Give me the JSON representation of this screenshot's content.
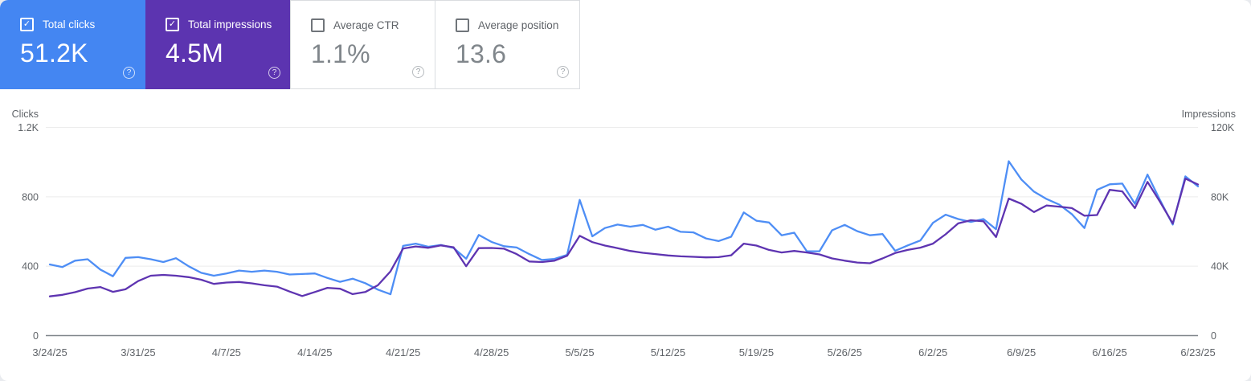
{
  "cards": [
    {
      "label": "Total clicks",
      "value": "51.2K",
      "checked": true,
      "color": "#4486f2"
    },
    {
      "label": "Total impressions",
      "value": "4.5M",
      "checked": true,
      "color": "#5c34b0"
    },
    {
      "label": "Average CTR",
      "value": "1.1%",
      "checked": false,
      "color": "#ffffff"
    },
    {
      "label": "Average position",
      "value": "13.6",
      "checked": false,
      "color": "#ffffff"
    }
  ],
  "help_icon_glyph": "?",
  "checkbox_check_glyph": "✓",
  "chart_data": {
    "type": "line",
    "start_date": "3/24/25",
    "end_date": "6/23/25",
    "x_tick_labels": [
      "3/24/25",
      "3/31/25",
      "4/7/25",
      "4/14/25",
      "4/21/25",
      "4/28/25",
      "5/5/25",
      "5/12/25",
      "5/19/25",
      "5/26/25",
      "6/2/25",
      "6/9/25",
      "6/16/25",
      "6/23/25"
    ],
    "left_axis": {
      "title": "Clicks",
      "ticks": [
        "0",
        "400",
        "800",
        "1.2K"
      ],
      "min": 0,
      "max": 1200
    },
    "right_axis": {
      "title": "Impressions",
      "ticks": [
        "0",
        "40K",
        "80K",
        "120K"
      ],
      "min": 0,
      "max": 120000
    },
    "grid": "horizontal-only",
    "legend_position": "none",
    "series": [
      {
        "name": "Clicks",
        "axis": "left",
        "color": "#4e8ef5",
        "values": [
          410,
          395,
          432,
          440,
          381,
          342,
          448,
          452,
          440,
          424,
          446,
          400,
          362,
          345,
          358,
          375,
          368,
          375,
          368,
          352,
          355,
          358,
          332,
          310,
          328,
          302,
          265,
          238,
          517,
          530,
          512,
          522,
          505,
          443,
          580,
          540,
          515,
          508,
          470,
          436,
          442,
          465,
          782,
          572,
          620,
          640,
          628,
          638,
          610,
          628,
          598,
          595,
          560,
          545,
          570,
          710,
          662,
          652,
          578,
          593,
          486,
          486,
          607,
          638,
          602,
          578,
          585,
          489,
          520,
          548,
          650,
          697,
          672,
          655,
          672,
          613,
          1005,
          900,
          830,
          787,
          755,
          700,
          620,
          840,
          872,
          876,
          760,
          928,
          780,
          640,
          918,
          860
        ]
      },
      {
        "name": "Impressions",
        "axis": "right",
        "color": "#5e34b1",
        "values": [
          22600,
          23500,
          25000,
          27100,
          28000,
          25200,
          26700,
          31400,
          34500,
          35000,
          34500,
          33700,
          32200,
          29800,
          30600,
          30900,
          30100,
          29000,
          28200,
          25400,
          22800,
          25100,
          27500,
          27000,
          23900,
          25100,
          29000,
          37000,
          50200,
          51400,
          50600,
          52000,
          50900,
          40000,
          50400,
          50500,
          50100,
          47000,
          42700,
          42400,
          43200,
          46000,
          57500,
          53900,
          51900,
          50400,
          48800,
          47700,
          47000,
          46200,
          45700,
          45400,
          45100,
          45200,
          46300,
          53000,
          51900,
          49400,
          47900,
          48800,
          47900,
          46800,
          44500,
          43200,
          42100,
          41700,
          44500,
          47600,
          49400,
          50700,
          53000,
          58400,
          64700,
          66500,
          65900,
          56800,
          79000,
          76000,
          71200,
          75000,
          74300,
          73500,
          69100,
          69500,
          84000,
          83100,
          73500,
          88600,
          77000,
          64600,
          90500,
          87100
        ]
      }
    ],
    "colors": {
      "gridline": "#ececec",
      "zero_line": "#80868b",
      "axis_text": "#5f6368"
    }
  }
}
